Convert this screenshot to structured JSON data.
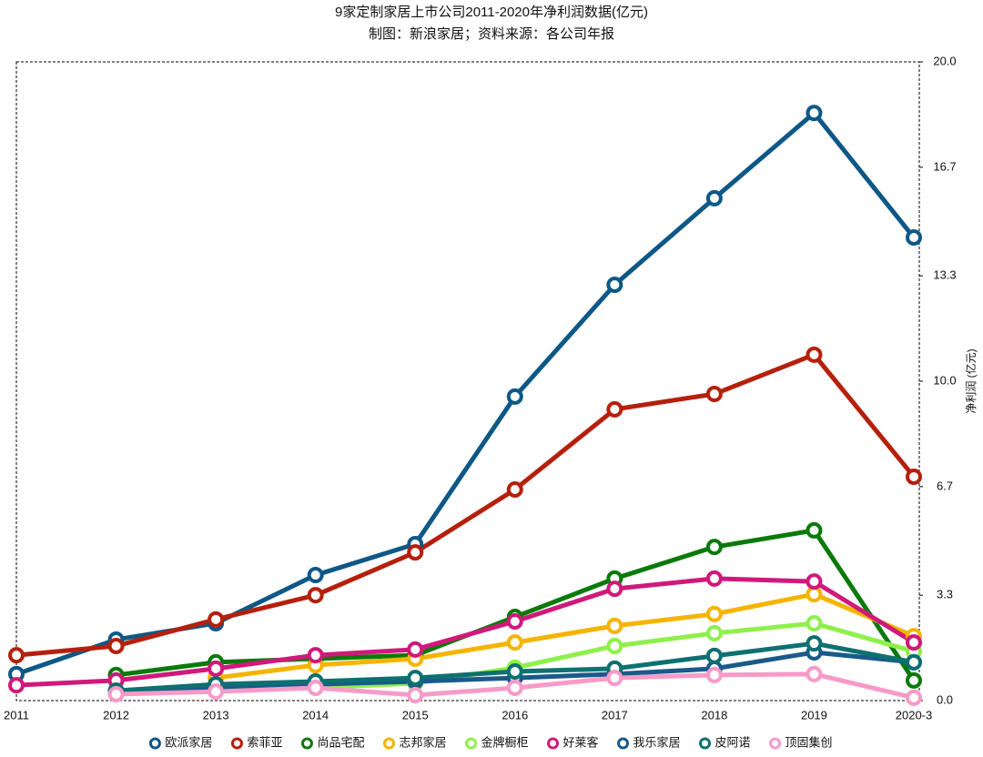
{
  "chart_data": {
    "type": "line",
    "title": "9家定制家居上市公司2011-2020年净利润数据(亿元)",
    "subtitle": "制图：新浪家居；资料来源：各公司年报",
    "y_label": "净利润 (亿元)",
    "categories": [
      "2011",
      "2012",
      "2013",
      "2014",
      "2015",
      "2016",
      "2017",
      "2018",
      "2019",
      "2020-3"
    ],
    "ylim": [
      0,
      20
    ],
    "yticks": [
      {
        "value": 0,
        "label": "0.0"
      },
      3.3,
      6.7,
      {
        "value": 10,
        "label": "10.0"
      },
      13.3,
      16.7,
      {
        "value": 20,
        "label": "20.0"
      }
    ],
    "series": [
      {
        "name": "欧派家居",
        "color": "#0d5887",
        "values": [
          0.83,
          1.91,
          2.42,
          3.93,
          4.9,
          9.52,
          13.02,
          15.73,
          18.4,
          14.5
        ]
      },
      {
        "name": "索菲亚",
        "color": "#b5200d",
        "values": [
          1.42,
          1.71,
          2.54,
          3.3,
          4.64,
          6.61,
          9.12,
          9.6,
          10.83,
          7.01
        ]
      },
      {
        "name": "尚品宅配",
        "color": "#0a7a0a",
        "values": [
          null,
          0.8,
          1.2,
          1.31,
          1.42,
          2.62,
          3.82,
          4.81,
          5.33,
          0.63
        ]
      },
      {
        "name": "志邦家居",
        "color": "#f5b400",
        "values": [
          null,
          null,
          0.71,
          1.11,
          1.31,
          1.82,
          2.34,
          2.71,
          3.33,
          2.02
        ]
      },
      {
        "name": "金牌橱柜",
        "color": "#8ef04a",
        "values": [
          null,
          0.23,
          0.31,
          0.4,
          0.54,
          1.03,
          1.71,
          2.11,
          2.42,
          1.54
        ]
      },
      {
        "name": "好莱客",
        "color": "#d0197a",
        "values": [
          0.48,
          0.63,
          1.0,
          1.42,
          1.6,
          2.48,
          3.5,
          3.82,
          3.73,
          1.82
        ]
      },
      {
        "name": "我乐家居",
        "color": "#1a5a8a",
        "values": [
          null,
          0.31,
          0.4,
          0.51,
          0.6,
          0.71,
          0.83,
          1.0,
          1.51,
          1.2
        ]
      },
      {
        "name": "皮阿诺",
        "color": "#0e7070",
        "values": [
          null,
          0.31,
          0.51,
          0.6,
          0.71,
          0.91,
          1.0,
          1.4,
          1.79,
          1.2
        ]
      },
      {
        "name": "顶固集创",
        "color": "#f79ac8",
        "values": [
          null,
          0.2,
          0.28,
          0.4,
          0.17,
          0.4,
          0.71,
          0.8,
          0.83,
          0.09
        ]
      }
    ]
  }
}
